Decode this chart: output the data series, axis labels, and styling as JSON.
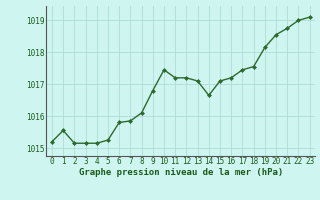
{
  "x": [
    0,
    1,
    2,
    3,
    4,
    5,
    6,
    7,
    8,
    9,
    10,
    11,
    12,
    13,
    14,
    15,
    16,
    17,
    18,
    19,
    20,
    21,
    22,
    23
  ],
  "y": [
    1015.2,
    1015.55,
    1015.15,
    1015.15,
    1015.15,
    1015.25,
    1015.8,
    1015.85,
    1016.1,
    1016.8,
    1017.45,
    1017.2,
    1017.2,
    1017.1,
    1016.65,
    1017.1,
    1017.2,
    1017.45,
    1017.55,
    1018.15,
    1018.55,
    1018.75,
    1019.0,
    1019.1
  ],
  "line_color": "#2d6a2d",
  "marker": "D",
  "marker_size": 2.0,
  "bg_color": "#cef5f0",
  "grid_color": "#b0ddd8",
  "xlabel": "Graphe pression niveau de la mer (hPa)",
  "xlabel_color": "#1a5c1a",
  "tick_color": "#1a5c1a",
  "ylim": [
    1014.75,
    1019.45
  ],
  "yticks": [
    1015,
    1016,
    1017,
    1018,
    1019
  ],
  "xticks": [
    0,
    1,
    2,
    3,
    4,
    5,
    6,
    7,
    8,
    9,
    10,
    11,
    12,
    13,
    14,
    15,
    16,
    17,
    18,
    19,
    20,
    21,
    22,
    23
  ],
  "line_width": 1.0,
  "tick_fontsize": 5.5,
  "xlabel_fontsize": 6.5
}
